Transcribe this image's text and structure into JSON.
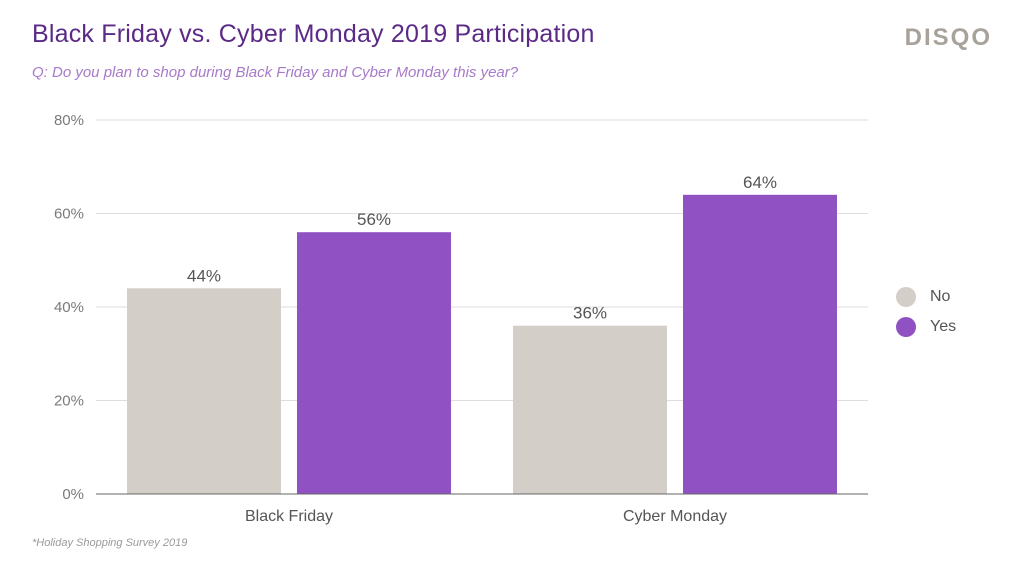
{
  "header": {
    "title": "Black Friday vs. Cyber Monday 2019 Participation",
    "subtitle": "Q: Do you plan to shop during Black Friday and Cyber Monday this year?",
    "brand": "DISQO"
  },
  "footnote": "*Holiday Shopping Survey 2019",
  "colors": {
    "no": "#d4cec8",
    "yes": "#9052c2",
    "grid": "#dedede",
    "axis": "#666666",
    "tick_text": "#7a7a7a",
    "label_text": "#555555"
  },
  "chart_data": {
    "type": "bar",
    "categories": [
      "Black Friday",
      "Cyber Monday"
    ],
    "series": [
      {
        "name": "No",
        "values": [
          44,
          36
        ],
        "labels": [
          "44%",
          "36%"
        ]
      },
      {
        "name": "Yes",
        "values": [
          56,
          64
        ],
        "labels": [
          "56%",
          "64%"
        ]
      }
    ],
    "ylim": [
      0,
      80
    ],
    "yticks": [
      0,
      20,
      40,
      60,
      80
    ],
    "ytick_labels": [
      "0%",
      "20%",
      "40%",
      "60%",
      "80%"
    ],
    "grid": true,
    "legend_position": "right"
  }
}
